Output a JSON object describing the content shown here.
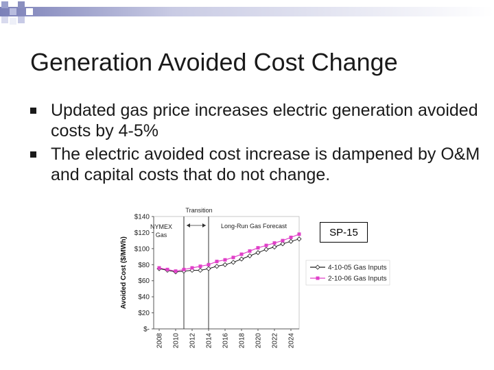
{
  "slide": {
    "title": "Generation Avoided Cost Change",
    "bullets": [
      "Updated gas price increases electric generation avoided costs by 4-5%",
      "The electric avoided cost increase is dampened by O&M and capital costs that do not change."
    ],
    "badge": "SP-15"
  },
  "colors": {
    "title": "#1a1a1a",
    "decoration": "#8a8fbf",
    "series_a": "#1a1a1a",
    "series_b": "#e040c8"
  },
  "chart_data": {
    "type": "line",
    "title": "",
    "xlabel": "",
    "ylabel": "Avoided Cost ($/MWh)",
    "x": [
      2008,
      2009,
      2010,
      2011,
      2012,
      2013,
      2014,
      2015,
      2016,
      2017,
      2018,
      2019,
      2020,
      2021,
      2022,
      2023,
      2024,
      2025
    ],
    "x_tick_labels": [
      "2008",
      "2010",
      "2012",
      "2014",
      "2016",
      "2018",
      "2020",
      "2022",
      "2024"
    ],
    "y_tick_labels": [
      "$-",
      "$20",
      "$40",
      "$60",
      "$80",
      "$100",
      "$120",
      "$140"
    ],
    "ylim": [
      0,
      140
    ],
    "series": [
      {
        "name": "4-10-05 Gas Inputs",
        "marker": "diamond",
        "values": [
          75,
          73,
          71,
          72,
          73,
          73,
          75,
          78,
          80,
          83,
          87,
          91,
          95,
          99,
          102,
          106,
          109,
          112
        ]
      },
      {
        "name": "2-10-06 Gas Inputs",
        "marker": "square",
        "values": [
          76,
          74,
          72,
          74,
          76,
          78,
          80,
          84,
          86,
          89,
          93,
          97,
          101,
          104,
          107,
          110,
          114,
          118
        ]
      }
    ],
    "annotations": {
      "transition": "Transition",
      "nymex": [
        "NYMEX",
        "Gas"
      ],
      "long_run": "Long-Run Gas Forecast"
    },
    "legend_position": "right"
  }
}
